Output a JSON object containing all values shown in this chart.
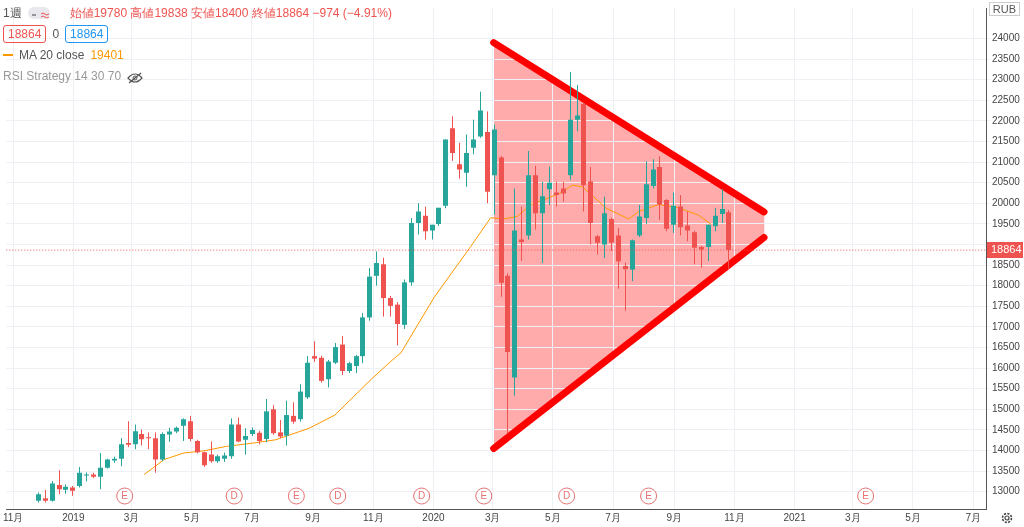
{
  "chart_data": {
    "type": "candlestick",
    "title": "1週",
    "subtitle": "始値19780 高値19838 安値18400 終値18864 −974 (−4.91%)",
    "ylabel": "RUB",
    "x": [
      "2018-11-26",
      "2018-12-03",
      "2018-12-10",
      "2018-12-17",
      "2018-12-24",
      "2018-12-31",
      "2019-01-07",
      "2019-01-14",
      "2019-01-21",
      "2019-01-28",
      "2019-02-04",
      "2019-02-11",
      "2019-02-18",
      "2019-02-25",
      "2019-03-04",
      "2019-03-11",
      "2019-03-18",
      "2019-03-25",
      "2019-04-01",
      "2019-04-08",
      "2019-04-15",
      "2019-04-22",
      "2019-04-29",
      "2019-05-06",
      "2019-05-13",
      "2019-05-20",
      "2019-05-27",
      "2019-06-03",
      "2019-06-10",
      "2019-06-17",
      "2019-06-24",
      "2019-07-01",
      "2019-07-08",
      "2019-07-15",
      "2019-07-22",
      "2019-07-29",
      "2019-08-05",
      "2019-08-12",
      "2019-08-19",
      "2019-08-26",
      "2019-09-02",
      "2019-09-09",
      "2019-09-16",
      "2019-09-23",
      "2019-09-30",
      "2019-10-07",
      "2019-10-14",
      "2019-10-21",
      "2019-10-28",
      "2019-11-04",
      "2019-11-11",
      "2019-11-18",
      "2019-11-25",
      "2019-12-02",
      "2019-12-09",
      "2019-12-16",
      "2019-12-23",
      "2019-12-30",
      "2020-01-06",
      "2020-01-13",
      "2020-01-20",
      "2020-01-27",
      "2020-02-03",
      "2020-02-10",
      "2020-02-17",
      "2020-02-24",
      "2020-03-02",
      "2020-03-09",
      "2020-03-16",
      "2020-03-23",
      "2020-03-30",
      "2020-04-06",
      "2020-04-13",
      "2020-04-20",
      "2020-04-27",
      "2020-05-04",
      "2020-05-11",
      "2020-05-18",
      "2020-05-25",
      "2020-06-01",
      "2020-06-08",
      "2020-06-15",
      "2020-06-22",
      "2020-06-29",
      "2020-07-06",
      "2020-07-13",
      "2020-07-20",
      "2020-07-27",
      "2020-08-03",
      "2020-08-10",
      "2020-08-17",
      "2020-08-24",
      "2020-08-31",
      "2020-09-07",
      "2020-09-14",
      "2020-09-21",
      "2020-09-28",
      "2020-10-05",
      "2020-10-12",
      "2020-10-19",
      "2020-10-26"
    ],
    "ohlc": [
      [
        12780,
        12980,
        12740,
        12940
      ],
      [
        12840,
        13040,
        12740,
        12780
      ],
      [
        12780,
        13260,
        12760,
        13200
      ],
      [
        13160,
        13520,
        12940,
        13060
      ],
      [
        13050,
        13180,
        12950,
        13120
      ],
      [
        13100,
        13140,
        12900,
        13020
      ],
      [
        13140,
        13600,
        13100,
        13460
      ],
      [
        13400,
        13470,
        13250,
        13420
      ],
      [
        13420,
        13460,
        13330,
        13360
      ],
      [
        13360,
        13940,
        13060,
        13580
      ],
      [
        13580,
        13800,
        13560,
        13780
      ],
      [
        13760,
        13850,
        13700,
        13800
      ],
      [
        13800,
        14300,
        13620,
        14150
      ],
      [
        14180,
        14710,
        14080,
        14140
      ],
      [
        14150,
        14630,
        14030,
        14470
      ],
      [
        14400,
        14510,
        14120,
        14270
      ],
      [
        14320,
        14440,
        14030,
        14300
      ],
      [
        14300,
        14440,
        13460,
        13780
      ],
      [
        13780,
        14440,
        13740,
        14400
      ],
      [
        14390,
        14550,
        14210,
        14460
      ],
      [
        14460,
        14580,
        14420,
        14550
      ],
      [
        14600,
        14780,
        14230,
        14760
      ],
      [
        14710,
        14840,
        14220,
        14280
      ],
      [
        14230,
        14260,
        13930,
        13960
      ],
      [
        13960,
        13970,
        13600,
        13640
      ],
      [
        13900,
        14220,
        13700,
        13740
      ],
      [
        13740,
        13900,
        13700,
        13860
      ],
      [
        13800,
        13950,
        13720,
        13880
      ],
      [
        13860,
        14780,
        13800,
        14630
      ],
      [
        14630,
        14800,
        14200,
        14220
      ],
      [
        14260,
        14540,
        13900,
        14350
      ],
      [
        14400,
        14560,
        14350,
        14500
      ],
      [
        14430,
        14480,
        14150,
        14230
      ],
      [
        14280,
        15250,
        14200,
        14950
      ],
      [
        15000,
        15100,
        14380,
        14420
      ],
      [
        14440,
        14740,
        14300,
        14340
      ],
      [
        14360,
        15210,
        14120,
        14860
      ],
      [
        14840,
        15170,
        14650,
        14700
      ],
      [
        14760,
        15610,
        14700,
        15430
      ],
      [
        15290,
        16290,
        15250,
        16130
      ],
      [
        16290,
        16650,
        16150,
        16230
      ],
      [
        16250,
        16300,
        15650,
        15690
      ],
      [
        15730,
        16200,
        15530,
        16160
      ],
      [
        16130,
        16610,
        16100,
        16510
      ],
      [
        16570,
        16780,
        15830,
        15930
      ],
      [
        15930,
        16150,
        15880,
        16120
      ],
      [
        16050,
        16320,
        15880,
        16290
      ],
      [
        16290,
        17340,
        16120,
        17230
      ],
      [
        17230,
        18430,
        17150,
        18220
      ],
      [
        18240,
        18830,
        18000,
        18550
      ],
      [
        18520,
        18680,
        17250,
        17700
      ],
      [
        17700,
        17750,
        17250,
        17510
      ],
      [
        17540,
        17600,
        16550,
        17070
      ],
      [
        17050,
        18150,
        16950,
        18080
      ],
      [
        18080,
        19640,
        18000,
        19520
      ],
      [
        19520,
        20000,
        19240,
        19800
      ],
      [
        19700,
        19920,
        19120,
        19320
      ],
      [
        19340,
        19480,
        19120,
        19480
      ],
      [
        19500,
        19890,
        19450,
        19890
      ],
      [
        19940,
        21550,
        19880,
        21550
      ],
      [
        21820,
        22110,
        21030,
        21220
      ],
      [
        20950,
        21470,
        20600,
        20820
      ],
      [
        20740,
        21670,
        20400,
        21220
      ],
      [
        21350,
        22030,
        21190,
        21550
      ],
      [
        21620,
        22710,
        21590,
        22250
      ],
      [
        21730,
        22230,
        20000,
        20280
      ],
      [
        20680,
        21910,
        19720,
        21790
      ],
      [
        21110,
        21150,
        17730,
        18070
      ],
      [
        18240,
        18300,
        14420,
        16390
      ],
      [
        15770,
        20360,
        15330,
        19340
      ],
      [
        19120,
        19920,
        18600,
        19060
      ],
      [
        19220,
        21270,
        19120,
        20680
      ],
      [
        20680,
        20910,
        19360,
        19760
      ],
      [
        19760,
        20520,
        18550,
        20170
      ],
      [
        20340,
        20890,
        19960,
        20500
      ],
      [
        20260,
        20520,
        19920,
        20200
      ],
      [
        20360,
        20520,
        20040,
        20240
      ],
      [
        20680,
        23190,
        20560,
        22030
      ],
      [
        22030,
        22870,
        21750,
        22130
      ],
      [
        22410,
        22450,
        19800,
        20440
      ],
      [
        20530,
        20880,
        19000,
        19520
      ],
      [
        19200,
        19230,
        18760,
        19040
      ],
      [
        19000,
        20160,
        18680,
        19760
      ],
      [
        19620,
        19650,
        18840,
        19040
      ],
      [
        19220,
        19400,
        17930,
        18590
      ],
      [
        18480,
        18560,
        17390,
        18400
      ],
      [
        18390,
        19120,
        18110,
        19100
      ],
      [
        19220,
        19960,
        19180,
        19680
      ],
      [
        19640,
        21020,
        19500,
        20460
      ],
      [
        20420,
        21070,
        20360,
        20820
      ],
      [
        20880,
        21140,
        19600,
        19970
      ],
      [
        20080,
        20100,
        19320,
        19380
      ],
      [
        19480,
        20260,
        19280,
        19940
      ],
      [
        19920,
        20200,
        19220,
        19420
      ],
      [
        19460,
        19800,
        19080,
        19340
      ],
      [
        19300,
        19330,
        18520,
        18920
      ],
      [
        18940,
        18970,
        18440,
        18880
      ],
      [
        18940,
        19480,
        18600,
        19480
      ],
      [
        19440,
        19890,
        19320,
        19700
      ],
      [
        19740,
        20340,
        19520,
        19860
      ],
      [
        19780,
        19838,
        18400,
        18864
      ]
    ],
    "series": [
      {
        "name": "MA 20 close",
        "type": "line",
        "color": "#ff9800",
        "x": [
          "2019-03-14",
          "2019-04-03",
          "2019-04-23",
          "2019-05-13",
          "2019-06-05",
          "2019-07-02",
          "2019-07-25",
          "2019-08-28",
          "2019-09-23",
          "2019-10-30",
          "2019-11-19",
          "2019-11-29",
          "2020-01-02",
          "2020-02-08",
          "2020-02-28",
          "2020-03-12",
          "2020-03-26",
          "2020-04-08",
          "2020-05-08",
          "2020-05-21",
          "2020-05-31",
          "2020-06-24",
          "2020-07-17",
          "2020-07-27",
          "2020-08-16",
          "2020-09-05",
          "2020-09-25",
          "2020-10-08"
        ],
        "values": [
          13420,
          13780,
          13940,
          13990,
          14100,
          14180,
          14260,
          14540,
          14860,
          15730,
          16170,
          16370,
          17730,
          18960,
          19650,
          19620,
          19680,
          19960,
          20240,
          20440,
          20400,
          19880,
          19620,
          19800,
          19970,
          19890,
          19720,
          19500
        ]
      },
      {
        "type": "line",
        "color": "#ff0000",
        "x": [
          "2020-03-02",
          "2020-12-01"
        ],
        "values": [
          23900,
          19790
        ]
      },
      {
        "type": "line",
        "color": "#ff0000",
        "x": [
          "2020-03-02",
          "2020-12-01"
        ],
        "values": [
          14050,
          19170
        ]
      }
    ],
    "xlim": [
      "2018-10-25",
      "2021-07-14"
    ],
    "xticks": [
      {
        "value": "2018-11-01",
        "label": "11月"
      },
      {
        "value": "2019-01-01",
        "label": "2019"
      },
      {
        "value": "2019-03-01",
        "label": "3月"
      },
      {
        "value": "2019-05-01",
        "label": "5月"
      },
      {
        "value": "2019-07-01",
        "label": "7月"
      },
      {
        "value": "2019-09-01",
        "label": "9月"
      },
      {
        "value": "2019-11-01",
        "label": "11月"
      },
      {
        "value": "2020-01-01",
        "label": "2020"
      },
      {
        "value": "2020-03-01",
        "label": "3月"
      },
      {
        "value": "2020-05-01",
        "label": "5月"
      },
      {
        "value": "2020-07-01",
        "label": "7月"
      },
      {
        "value": "2020-09-01",
        "label": "9月"
      },
      {
        "value": "2020-11-01",
        "label": "11月"
      },
      {
        "value": "2021-01-01",
        "label": "2021"
      },
      {
        "value": "2021-03-01",
        "label": "3月"
      },
      {
        "value": "2021-05-01",
        "label": "5月"
      },
      {
        "value": "2021-07-01",
        "label": "7月"
      }
    ],
    "ylim": [
      12580,
      24740
    ],
    "yticks": [
      13000,
      13500,
      14000,
      14500,
      15000,
      15500,
      16000,
      16500,
      17000,
      17500,
      18000,
      18500,
      {
        "value": 19000,
        "label": null
      },
      19500,
      20000,
      20500,
      21000,
      21500,
      22000,
      22500,
      23000,
      23500,
      24000
    ],
    "grid": true,
    "legend": "top left",
    "ref_lines": [
      {
        "axis": "y",
        "value": 18864,
        "label": "18864",
        "color": "#ef5350",
        "line_style": "dotted"
      }
    ],
    "annotations": [
      "18864",
      "0",
      "18864",
      "19401",
      "RSI Strategy 14 30 70",
      {
        "text": "E",
        "x": "2019-02-22"
      },
      {
        "text": "D",
        "x": "2019-06-13"
      },
      {
        "text": "E",
        "x": "2019-08-15"
      },
      {
        "text": "D",
        "x": "2019-09-26"
      },
      {
        "text": "D",
        "x": "2019-12-20"
      },
      {
        "text": "E",
        "x": "2020-02-21"
      },
      {
        "text": "D",
        "x": "2020-05-15"
      },
      {
        "text": "E",
        "x": "2020-08-06"
      },
      {
        "text": "E",
        "x": "2021-03-14"
      }
    ]
  }
}
